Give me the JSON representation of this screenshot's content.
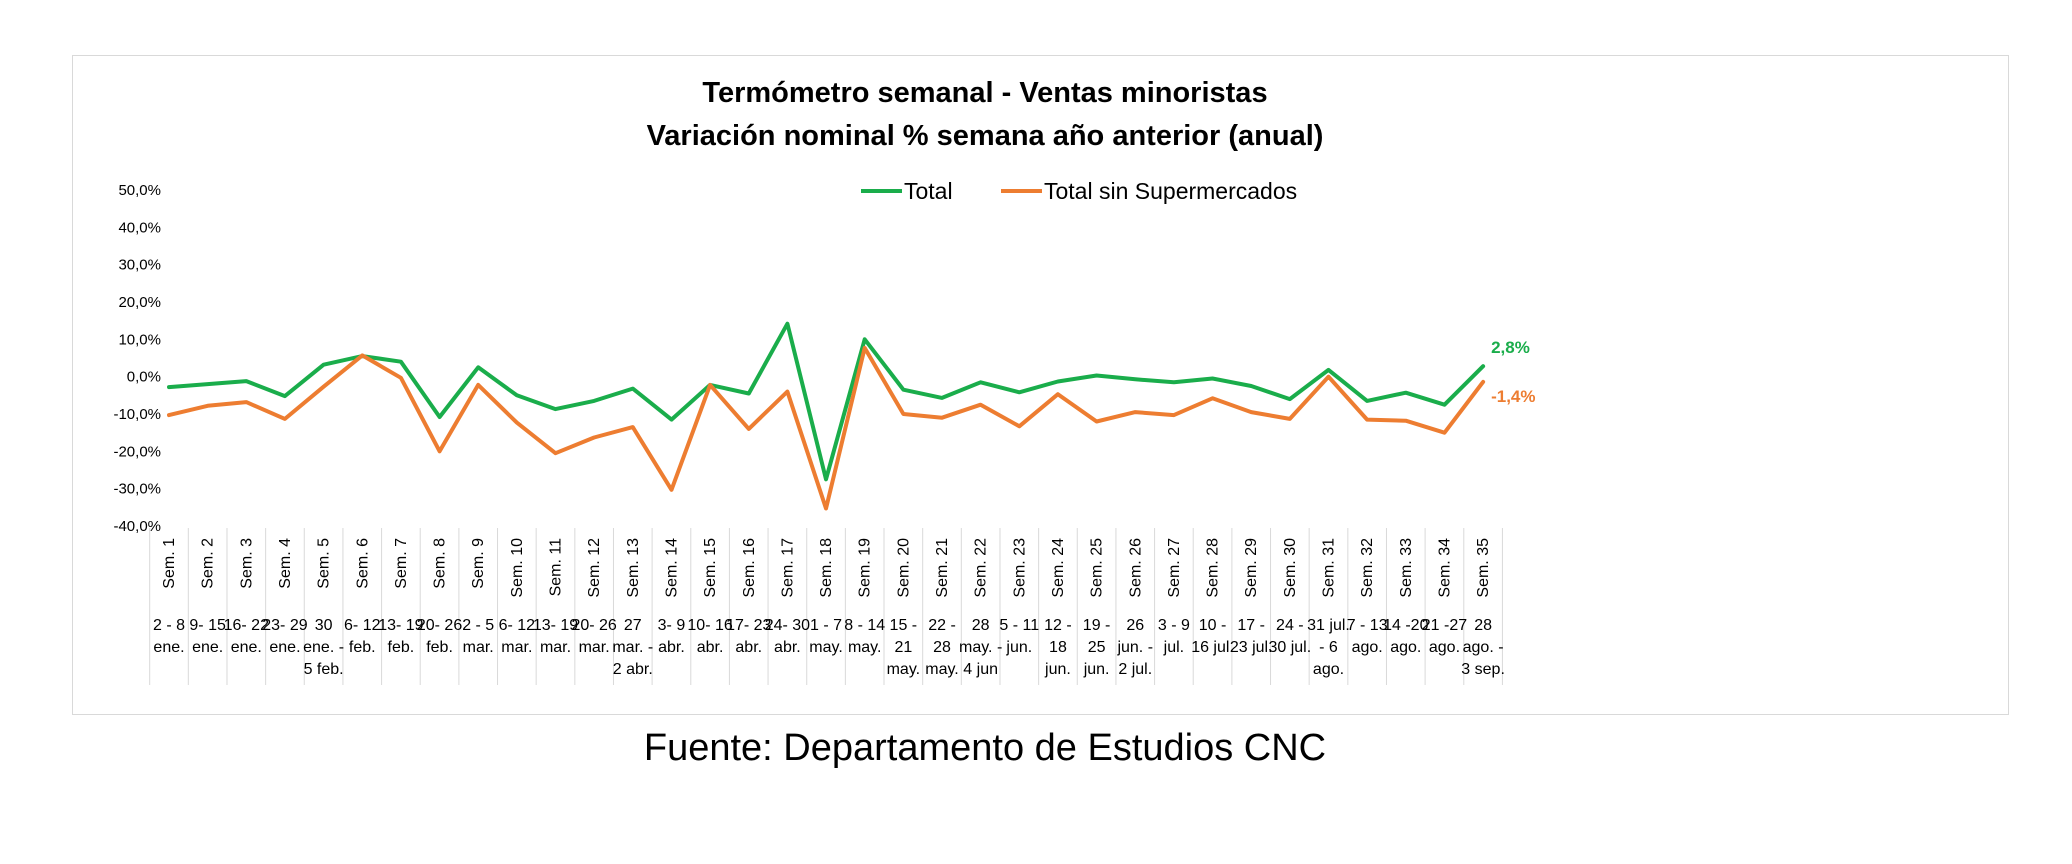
{
  "chart_data": {
    "type": "line",
    "title": [
      "Termómetro semanal - Ventas minoristas",
      "Variación nominal % semana año anterior (anual)"
    ],
    "ylim": [
      -40,
      50
    ],
    "yticks": [
      "50,0%",
      "40,0%",
      "30,0%",
      "20,0%",
      "10,0%",
      "0,0%",
      "-10,0%",
      "-20,0%",
      "-30,0%",
      "-40,0%"
    ],
    "ytick_values": [
      50,
      40,
      30,
      20,
      10,
      0,
      -10,
      -20,
      -30,
      -40
    ],
    "categories": [
      "Sem. 1",
      "Sem. 2",
      "Sem. 3",
      "Sem. 4",
      "Sem. 5",
      "Sem. 6",
      "Sem. 7",
      "Sem. 8",
      "Sem. 9",
      "Sem. 10",
      "Sem. 11",
      "Sem. 12",
      "Sem. 13",
      "Sem. 14",
      "Sem. 15",
      "Sem. 16",
      "Sem. 17",
      "Sem. 18",
      "Sem. 19",
      "Sem. 20",
      "Sem. 21",
      "Sem. 22",
      "Sem. 23",
      "Sem. 24",
      "Sem. 25",
      "Sem. 26",
      "Sem. 27",
      "Sem. 28",
      "Sem. 29",
      "Sem. 30",
      "Sem. 31",
      "Sem. 32",
      "Sem. 33",
      "Sem. 34",
      "Sem. 35"
    ],
    "date_labels": [
      [
        "2 - 8",
        "ene."
      ],
      [
        "9- 15",
        "ene."
      ],
      [
        "16- 22",
        "ene."
      ],
      [
        "23- 29",
        "ene."
      ],
      [
        "30",
        "ene. -",
        "5 feb."
      ],
      [
        "6- 12",
        "feb."
      ],
      [
        "13- 19",
        "feb."
      ],
      [
        "20- 26",
        "feb."
      ],
      [
        "2 - 5",
        "mar."
      ],
      [
        "6- 12",
        "mar."
      ],
      [
        "13- 19",
        "mar."
      ],
      [
        "20- 26",
        "mar."
      ],
      [
        "27",
        "mar. -",
        "2 abr."
      ],
      [
        "3- 9",
        "abr."
      ],
      [
        "10- 16",
        "abr."
      ],
      [
        "17- 23",
        "abr."
      ],
      [
        "24- 30",
        "abr."
      ],
      [
        "1 - 7",
        "may."
      ],
      [
        "8 - 14",
        "may."
      ],
      [
        "15 -",
        "21",
        "may."
      ],
      [
        "22 -",
        "28",
        "may."
      ],
      [
        "28",
        "may. -",
        "4 jun"
      ],
      [
        "5 - 11",
        "jun."
      ],
      [
        "12 -",
        "18",
        "jun."
      ],
      [
        "19 -",
        "25",
        "jun."
      ],
      [
        "26",
        "jun. -",
        "2 jul."
      ],
      [
        "3 - 9",
        "jul."
      ],
      [
        "10 -",
        "16 jul."
      ],
      [
        "17 -",
        "23 jul."
      ],
      [
        "24 -",
        "30 jul."
      ],
      [
        "31 jul.",
        "- 6",
        "ago."
      ],
      [
        "7 - 13",
        "ago."
      ],
      [
        "14 -20",
        "ago."
      ],
      [
        "21 -27",
        "ago."
      ],
      [
        "28",
        "ago. -",
        "3 sep."
      ]
    ],
    "series": [
      {
        "name": "Total",
        "color": "#1aad4b",
        "values": [
          -2.8,
          -2.0,
          -1.2,
          -5.2,
          3.2,
          5.5,
          4.0,
          -10.8,
          2.5,
          -5.0,
          -8.7,
          -6.5,
          -3.2,
          -11.5,
          -2.2,
          -4.5,
          14.2,
          -27.5,
          10.0,
          -3.5,
          -5.7,
          -1.5,
          -4.2,
          -1.3,
          0.3,
          -0.7,
          -1.5,
          -0.5,
          -2.5,
          -6.0,
          1.8,
          -6.5,
          -4.3,
          -7.5,
          2.8
        ],
        "end_label": "2,8%"
      },
      {
        "name": "Total sin Supermercados",
        "color": "#ed7d31",
        "values": [
          -10.3,
          -7.8,
          -6.8,
          -11.3,
          -2.7,
          5.7,
          -0.3,
          -20.0,
          -2.2,
          -12.3,
          -20.5,
          -16.3,
          -13.5,
          -30.3,
          -2.2,
          -14.0,
          -4.0,
          -35.3,
          7.7,
          -10.0,
          -11.0,
          -7.5,
          -13.3,
          -4.7,
          -12.0,
          -9.5,
          -10.3,
          -5.8,
          -9.5,
          -11.3,
          0.0,
          -11.5,
          -11.8,
          -15.0,
          -1.4
        ],
        "end_label": "-1,4%"
      }
    ]
  },
  "source": "Fuente: Departamento de Estudios CNC"
}
